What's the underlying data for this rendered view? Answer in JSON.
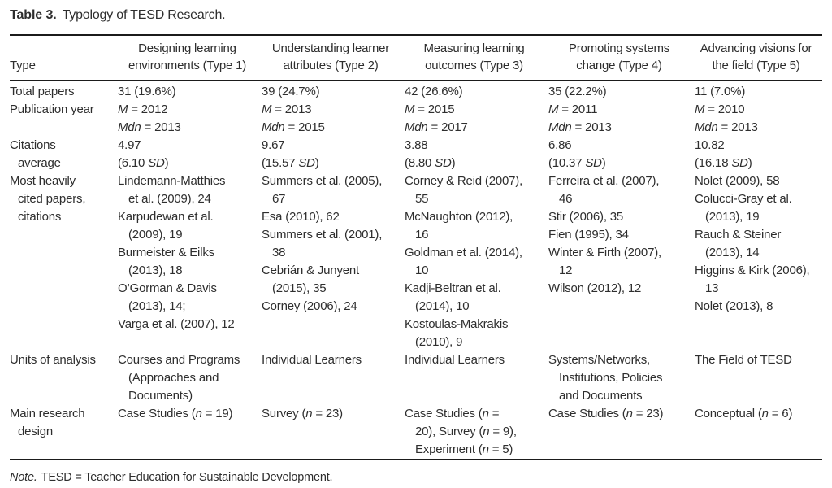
{
  "title": {
    "label": "Table 3.",
    "text": "Typology of TESD Research."
  },
  "note": {
    "label": "Note.",
    "text": "TESD = Teacher Education for Sustainable Development."
  },
  "colors": {
    "text": "#2e2e2e",
    "rule": "#1b1b1b",
    "background": "#ffffff"
  },
  "table": {
    "corner_header": "Type",
    "columns": [
      [
        "Designing learning",
        "environments (Type 1)"
      ],
      [
        "Understanding learner",
        "attributes (Type 2)"
      ],
      [
        "Measuring learning",
        "outcomes (Type 3)"
      ],
      [
        "Promoting systems",
        "change (Type 4)"
      ],
      [
        "Advancing visions for",
        "the field (Type 5)"
      ]
    ],
    "rows": [
      {
        "label": [
          {
            "seg": [
              "Total papers"
            ]
          }
        ],
        "cells": [
          [
            {
              "seg": [
                "31 (19.6%)"
              ]
            }
          ],
          [
            {
              "seg": [
                "39 (24.7%)"
              ]
            }
          ],
          [
            {
              "seg": [
                "42 (26.6%)"
              ]
            }
          ],
          [
            {
              "seg": [
                "35 (22.2%)"
              ]
            }
          ],
          [
            {
              "seg": [
                "11 (7.0%)"
              ]
            }
          ]
        ]
      },
      {
        "label": [
          {
            "seg": [
              "Publication year"
            ]
          }
        ],
        "cells": [
          [
            {
              "seg": [
                {
                  "i": "M"
                },
                " = 2012"
              ]
            },
            {
              "seg": [
                {
                  "i": "Mdn"
                },
                " = 2013"
              ]
            }
          ],
          [
            {
              "seg": [
                {
                  "i": "M"
                },
                " = 2013"
              ]
            },
            {
              "seg": [
                {
                  "i": "Mdn"
                },
                " = 2015"
              ]
            }
          ],
          [
            {
              "seg": [
                {
                  "i": "M"
                },
                " = 2015"
              ]
            },
            {
              "seg": [
                {
                  "i": "Mdn"
                },
                " = 2017"
              ]
            }
          ],
          [
            {
              "seg": [
                {
                  "i": "M"
                },
                " = 2011"
              ]
            },
            {
              "seg": [
                {
                  "i": "Mdn"
                },
                " = 2013"
              ]
            }
          ],
          [
            {
              "seg": [
                {
                  "i": "M"
                },
                " = 2010"
              ]
            },
            {
              "seg": [
                {
                  "i": "Mdn"
                },
                " = 2013"
              ]
            }
          ]
        ]
      },
      {
        "label": [
          {
            "seg": [
              "Citations"
            ]
          },
          {
            "ind": true,
            "seg": [
              "average"
            ]
          }
        ],
        "cells": [
          [
            {
              "seg": [
                "4.97"
              ]
            },
            {
              "seg": [
                "(6.10 ",
                {
                  "i": "SD"
                },
                ")"
              ]
            }
          ],
          [
            {
              "seg": [
                "9.67"
              ]
            },
            {
              "seg": [
                "(15.57 ",
                {
                  "i": "SD"
                },
                ")"
              ]
            }
          ],
          [
            {
              "seg": [
                "3.88"
              ]
            },
            {
              "seg": [
                "(8.80 ",
                {
                  "i": "SD"
                },
                ")"
              ]
            }
          ],
          [
            {
              "seg": [
                "6.86"
              ]
            },
            {
              "seg": [
                "(10.37 ",
                {
                  "i": "SD"
                },
                ")"
              ]
            }
          ],
          [
            {
              "seg": [
                "10.82"
              ]
            },
            {
              "seg": [
                "(16.18 ",
                {
                  "i": "SD"
                },
                ")"
              ]
            }
          ]
        ]
      },
      {
        "label": [
          {
            "seg": [
              "Most heavily"
            ]
          },
          {
            "ind": true,
            "seg": [
              "cited papers,"
            ]
          },
          {
            "ind": true,
            "seg": [
              "citations"
            ]
          }
        ],
        "cells": [
          [
            {
              "seg": [
                "Lindemann-Matthies"
              ]
            },
            {
              "ind": true,
              "seg": [
                "et al. (2009), 24"
              ]
            },
            {
              "seg": [
                "Karpudewan et al."
              ]
            },
            {
              "ind": true,
              "seg": [
                "(2009), 19"
              ]
            },
            {
              "seg": [
                "Burmeister & Eilks"
              ]
            },
            {
              "ind": true,
              "seg": [
                "(2013), 18"
              ]
            },
            {
              "seg": [
                "O’Gorman & Davis"
              ]
            },
            {
              "ind": true,
              "seg": [
                "(2013), 14;"
              ]
            },
            {
              "seg": [
                "Varga et al. (2007), 12"
              ]
            }
          ],
          [
            {
              "seg": [
                "Summers et al. (2005),"
              ]
            },
            {
              "ind": true,
              "seg": [
                "67"
              ]
            },
            {
              "seg": [
                "Esa (2010), 62"
              ]
            },
            {
              "seg": [
                "Summers et al. (2001),"
              ]
            },
            {
              "ind": true,
              "seg": [
                "38"
              ]
            },
            {
              "seg": [
                "Cebrián & Junyent"
              ]
            },
            {
              "ind": true,
              "seg": [
                "(2015), 35"
              ]
            },
            {
              "seg": [
                "Corney (2006), 24"
              ]
            }
          ],
          [
            {
              "seg": [
                "Corney & Reid (2007),"
              ]
            },
            {
              "ind": true,
              "seg": [
                "55"
              ]
            },
            {
              "seg": [
                "McNaughton (2012),"
              ]
            },
            {
              "ind": true,
              "seg": [
                "16"
              ]
            },
            {
              "seg": [
                "Goldman et al. (2014),"
              ]
            },
            {
              "ind": true,
              "seg": [
                "10"
              ]
            },
            {
              "seg": [
                "Kadji-Beltran et al."
              ]
            },
            {
              "ind": true,
              "seg": [
                "(2014), 10"
              ]
            },
            {
              "seg": [
                "Kostoulas-Makrakis"
              ]
            },
            {
              "ind": true,
              "seg": [
                "(2010), 9"
              ]
            }
          ],
          [
            {
              "seg": [
                "Ferreira et al. (2007),"
              ]
            },
            {
              "ind": true,
              "seg": [
                "46"
              ]
            },
            {
              "seg": [
                "Stir (2006), 35"
              ]
            },
            {
              "seg": [
                "Fien (1995), 34"
              ]
            },
            {
              "seg": [
                "Winter & Firth (2007),"
              ]
            },
            {
              "ind": true,
              "seg": [
                "12"
              ]
            },
            {
              "seg": [
                "Wilson (2012), 12"
              ]
            }
          ],
          [
            {
              "seg": [
                "Nolet (2009), 58"
              ]
            },
            {
              "seg": [
                "Colucci-Gray et al."
              ]
            },
            {
              "ind": true,
              "seg": [
                "(2013), 19"
              ]
            },
            {
              "seg": [
                "Rauch & Steiner"
              ]
            },
            {
              "ind": true,
              "seg": [
                "(2013), 14"
              ]
            },
            {
              "seg": [
                "Higgins & Kirk (2006),"
              ]
            },
            {
              "ind": true,
              "seg": [
                "13"
              ]
            },
            {
              "seg": [
                "Nolet (2013), 8"
              ]
            }
          ]
        ]
      },
      {
        "label": [
          {
            "seg": [
              "Units of analysis"
            ]
          }
        ],
        "cells": [
          [
            {
              "seg": [
                "Courses and Programs"
              ]
            },
            {
              "ind": true,
              "seg": [
                "(Approaches and"
              ]
            },
            {
              "ind": true,
              "seg": [
                "Documents)"
              ]
            }
          ],
          [
            {
              "seg": [
                "Individual Learners"
              ]
            }
          ],
          [
            {
              "seg": [
                "Individual Learners"
              ]
            }
          ],
          [
            {
              "seg": [
                "Systems/Networks,"
              ]
            },
            {
              "ind": true,
              "seg": [
                "Institutions, Policies"
              ]
            },
            {
              "ind": true,
              "seg": [
                "and Documents"
              ]
            }
          ],
          [
            {
              "seg": [
                "The Field of TESD"
              ]
            }
          ]
        ]
      },
      {
        "label": [
          {
            "seg": [
              "Main research"
            ]
          },
          {
            "ind": true,
            "seg": [
              "design"
            ]
          }
        ],
        "cells": [
          [
            {
              "seg": [
                "Case Studies (",
                {
                  "i": "n"
                },
                " = 19)"
              ]
            }
          ],
          [
            {
              "seg": [
                "Survey (",
                {
                  "i": "n"
                },
                " = 23)"
              ]
            }
          ],
          [
            {
              "seg": [
                "Case Studies (",
                {
                  "i": "n"
                },
                " ="
              ]
            },
            {
              "ind": true,
              "seg": [
                "20), Survey (",
                {
                  "i": "n"
                },
                " = 9),"
              ]
            },
            {
              "ind": true,
              "seg": [
                "Experiment (",
                {
                  "i": "n"
                },
                " = 5)"
              ]
            }
          ],
          [
            {
              "seg": [
                "Case Studies (",
                {
                  "i": "n"
                },
                " = 23)"
              ]
            }
          ],
          [
            {
              "seg": [
                "Conceptual (",
                {
                  "i": "n"
                },
                " = 6)"
              ]
            }
          ]
        ]
      }
    ]
  }
}
